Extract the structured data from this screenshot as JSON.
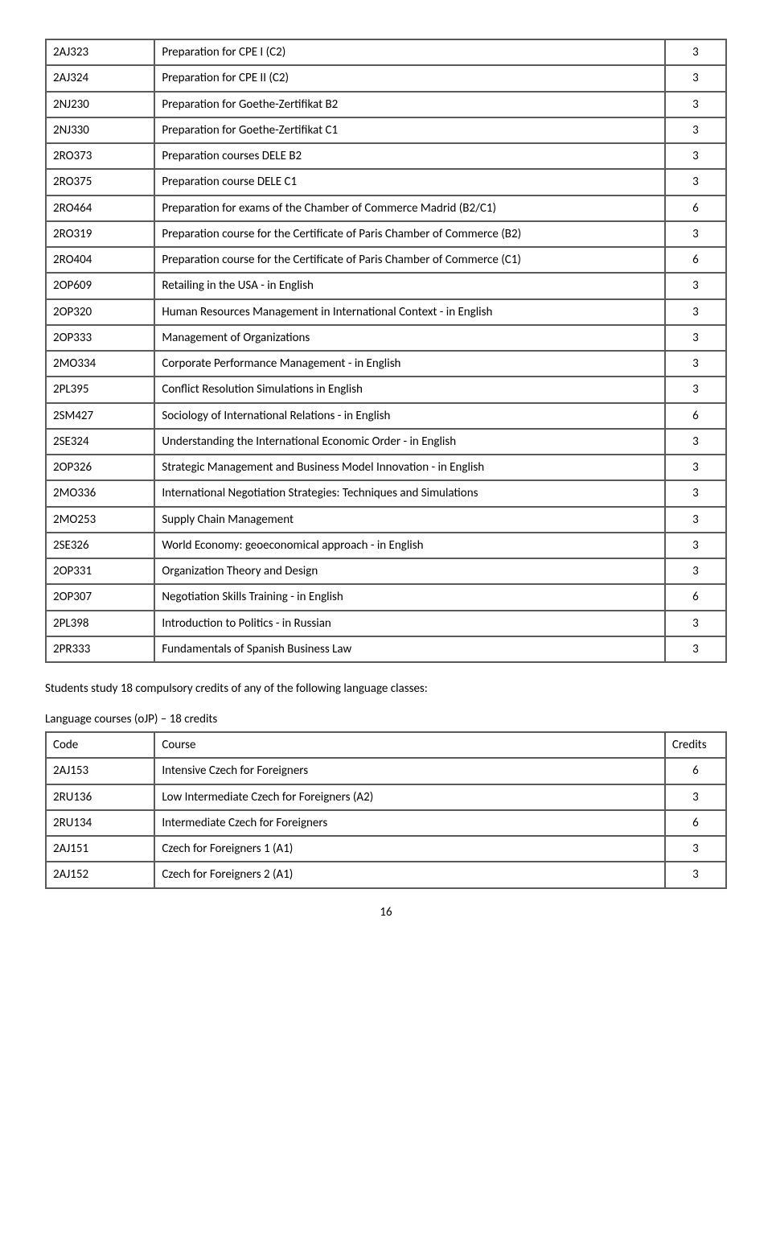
{
  "main_table": {
    "rows": [
      {
        "code": "2AJ323",
        "name": "Preparation for CPE I (C2)",
        "credits": "3"
      },
      {
        "code": "2AJ324",
        "name": "Preparation for CPE II (C2)",
        "credits": "3"
      },
      {
        "code": "2NJ230",
        "name": "Preparation for Goethe-Zertifikat B2",
        "credits": "3"
      },
      {
        "code": "2NJ330",
        "name": "Preparation for Goethe-Zertifikat C1",
        "credits": "3"
      },
      {
        "code": "2RO373",
        "name": "Preparation courses DELE B2",
        "credits": "3"
      },
      {
        "code": "2RO375",
        "name": "Preparation course DELE C1",
        "credits": "3"
      },
      {
        "code": "2RO464",
        "name": "Preparation for exams of the Chamber of Commerce Madrid (B2/C1)",
        "credits": "6"
      },
      {
        "code": "2RO319",
        "name": "Preparation course for the Certificate of Paris Chamber of Commerce (B2)",
        "credits": "3"
      },
      {
        "code": "2RO404",
        "name": "Preparation course for the Certificate of Paris Chamber of Commerce (C1)",
        "credits": "6"
      },
      {
        "code": "2OP609",
        "name": "Retailing in the USA - in English",
        "credits": "3"
      },
      {
        "code": "2OP320",
        "name": "Human Resources Management in International Context - in English",
        "credits": "3"
      },
      {
        "code": "2OP333",
        "name": "Management of Organizations",
        "credits": "3"
      },
      {
        "code": "2MO334",
        "name": "Corporate Performance Management - in English",
        "credits": "3"
      },
      {
        "code": "2PL395",
        "name": "Conflict Resolution Simulations in English",
        "credits": "3"
      },
      {
        "code": "2SM427",
        "name": "Sociology of International Relations - in English",
        "credits": "6"
      },
      {
        "code": "2SE324",
        "name": "Understanding the International Economic Order - in English",
        "credits": "3"
      },
      {
        "code": "2OP326",
        "name": "Strategic Management and Business Model Innovation - in English",
        "credits": "3"
      },
      {
        "code": "2MO336",
        "name": "International Negotiation Strategies: Techniques and Simulations",
        "credits": "3"
      },
      {
        "code": "2MO253",
        "name": "Supply Chain Management",
        "credits": "3"
      },
      {
        "code": "2SE326",
        "name": "World Economy: geoeconomical approach - in English",
        "credits": "3"
      },
      {
        "code": "2OP331",
        "name": "Organization Theory and Design",
        "credits": "3"
      },
      {
        "code": "2OP307",
        "name": "Negotiation Skills Training - in English",
        "credits": "6"
      },
      {
        "code": "2PL398",
        "name": "Introduction to Politics - in Russian",
        "credits": "3"
      },
      {
        "code": "2PR333",
        "name": "Fundamentals of Spanish Business Law",
        "credits": "3"
      }
    ]
  },
  "paragraph1": "Students study 18 compulsory credits of any of the following language classes:",
  "paragraph2": "Language courses (oJP) – 18 credits",
  "lang_table": {
    "headers": {
      "code": "Code",
      "name": "Course",
      "credits": "Credits"
    },
    "rows": [
      {
        "code": "2AJ153",
        "name": "Intensive Czech for Foreigners",
        "credits": "6"
      },
      {
        "code": "2RU136",
        "name": "Low Intermediate Czech for Foreigners (A2)",
        "credits": "3"
      },
      {
        "code": "2RU134",
        "name": "Intermediate Czech for Foreigners",
        "credits": "6"
      },
      {
        "code": "2AJ151",
        "name": "Czech for Foreigners 1 (A1)",
        "credits": "3"
      },
      {
        "code": "2AJ152",
        "name": "Czech for Foreigners 2 (A1)",
        "credits": "3"
      }
    ]
  },
  "page_number": "16"
}
